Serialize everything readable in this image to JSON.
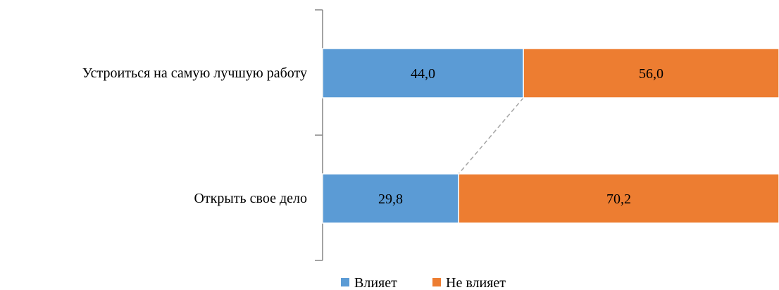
{
  "chart_data": {
    "type": "bar",
    "orientation": "horizontal",
    "stacked": true,
    "percent_stacked": true,
    "categories": [
      "Устроиться на самую лучшую работу",
      "Открыть свое дело"
    ],
    "series": [
      {
        "name": "Влияет",
        "color": "#5b9bd5",
        "values": [
          44.0,
          29.8
        ],
        "labels": [
          "44,0",
          "29,8"
        ]
      },
      {
        "name": "Не влияет",
        "color": "#ed7d31",
        "values": [
          56.0,
          70.2
        ],
        "labels": [
          "56,0",
          "70,2"
        ]
      }
    ],
    "xlim": [
      0,
      100
    ],
    "series_lines": true,
    "grid": false,
    "legend_position": "bottom",
    "title": "",
    "xlabel": "",
    "ylabel": ""
  }
}
